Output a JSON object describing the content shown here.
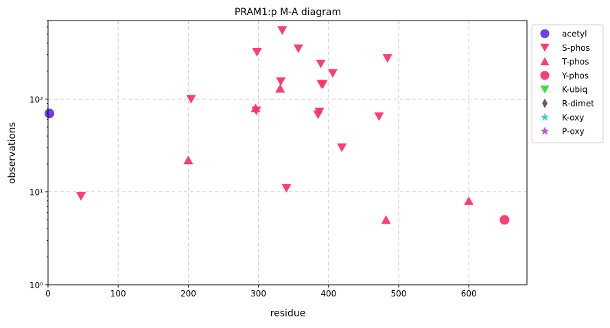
{
  "chart_data": {
    "type": "scatter",
    "title": "PRAM1:p M-A diagram",
    "xlabel": "residue",
    "ylabel": "observations",
    "xlim": [
      0,
      683
    ],
    "ylim": [
      1,
      700
    ],
    "yscale": "log",
    "grid": true,
    "legend_position": "outside-top-right",
    "x_ticks": [
      0,
      100,
      200,
      300,
      400,
      500,
      600
    ],
    "x_tick_labels": [
      "0",
      "100",
      "200",
      "300",
      "400",
      "500",
      "600"
    ],
    "y_ticks": [
      1,
      10,
      100
    ],
    "y_tick_labels": [
      "10⁰",
      "10¹",
      "10²"
    ],
    "series": [
      {
        "name": "acetyl",
        "marker": "circle",
        "color": "#6633ee",
        "points": [
          [
            2,
            70
          ]
        ]
      },
      {
        "name": "S-phos",
        "marker": "triangle-down",
        "color": "#ff3366",
        "points": [
          [
            47,
            9
          ],
          [
            204,
            100
          ],
          [
            297,
            75
          ],
          [
            298,
            320
          ],
          [
            334,
            550
          ],
          [
            332,
            155
          ],
          [
            357,
            350
          ],
          [
            340,
            11
          ],
          [
            385,
            68
          ],
          [
            387,
            73
          ],
          [
            389,
            240
          ],
          [
            390,
            145
          ],
          [
            392,
            145
          ],
          [
            406,
            190
          ],
          [
            419,
            30
          ],
          [
            472,
            65
          ],
          [
            484,
            275
          ]
        ]
      },
      {
        "name": "T-phos",
        "marker": "triangle-up",
        "color": "#ff3366",
        "points": [
          [
            200,
            22
          ],
          [
            296,
            80
          ],
          [
            331,
            130
          ],
          [
            482,
            5
          ],
          [
            600,
            8
          ]
        ]
      },
      {
        "name": "Y-phos",
        "marker": "circle",
        "color": "#ff3366",
        "points": [
          [
            651,
            5
          ]
        ]
      },
      {
        "name": "K-ubiq",
        "marker": "triangle-down",
        "color": "#33dd33",
        "points": []
      },
      {
        "name": "R-dimet",
        "marker": "diamond",
        "color": "#6e5048",
        "points": []
      },
      {
        "name": "K-oxy",
        "marker": "star",
        "color": "#33cccc",
        "points": []
      },
      {
        "name": "P-oxy",
        "marker": "star",
        "color": "#cc44dd",
        "points": []
      }
    ]
  }
}
